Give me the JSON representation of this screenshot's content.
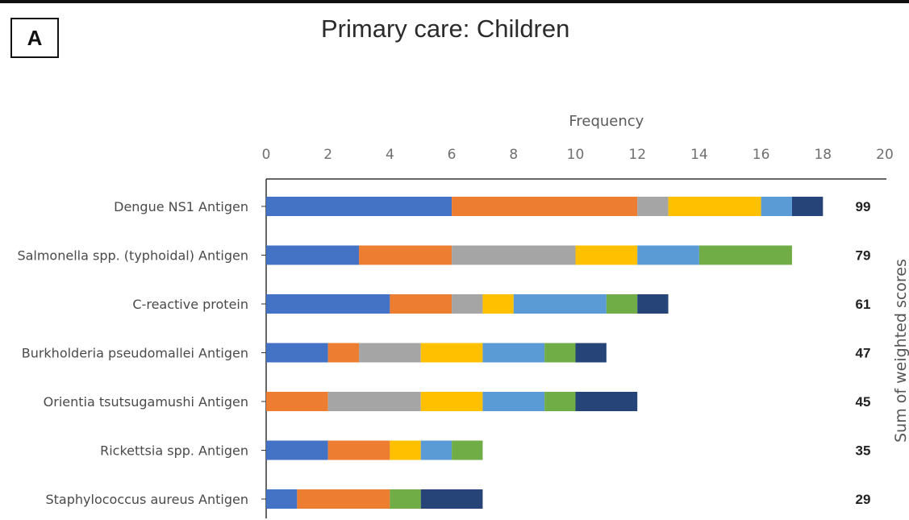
{
  "panel_label": "A",
  "chart_data": {
    "type": "bar",
    "orientation": "horizontal",
    "stacked": true,
    "title": "Primary care: Children",
    "xlabel": "Frequency",
    "secondary_ylabel": "Sum of weighted scores",
    "xlim": [
      0,
      20
    ],
    "xticks": [
      0,
      2,
      4,
      6,
      8,
      10,
      12,
      14,
      16,
      18,
      20
    ],
    "x_axis_position": "top",
    "grid": false,
    "legend": "none",
    "categories": [
      "Dengue NS1 Antigen",
      "Salmonella spp. (typhoidal) Antigen",
      "C-reactive protein",
      "Burkholderia pseudomallei Antigen",
      "Orientia tsutsugamushi Antigen",
      "Rickettsia spp. Antigen",
      "Staphylococcus aureus Antigen"
    ],
    "sum_of_weighted_scores": [
      99,
      79,
      61,
      47,
      45,
      35,
      29
    ],
    "series": [
      {
        "color": "#4472c4",
        "values": [
          6,
          3,
          4,
          2,
          0,
          2,
          1
        ]
      },
      {
        "color": "#ed7d31",
        "values": [
          6,
          3,
          2,
          1,
          2,
          2,
          3
        ]
      },
      {
        "color": "#a5a5a5",
        "values": [
          1,
          4,
          1,
          2,
          3,
          0,
          0
        ]
      },
      {
        "color": "#ffc000",
        "values": [
          3,
          2,
          1,
          2,
          2,
          1,
          0
        ]
      },
      {
        "color": "#5b9bd5",
        "values": [
          1,
          2,
          3,
          2,
          2,
          1,
          0
        ]
      },
      {
        "color": "#70ad47",
        "values": [
          0,
          3,
          1,
          1,
          1,
          1,
          1
        ]
      },
      {
        "color": "#264478",
        "values": [
          1,
          0,
          1,
          1,
          2,
          0,
          2
        ]
      }
    ]
  }
}
